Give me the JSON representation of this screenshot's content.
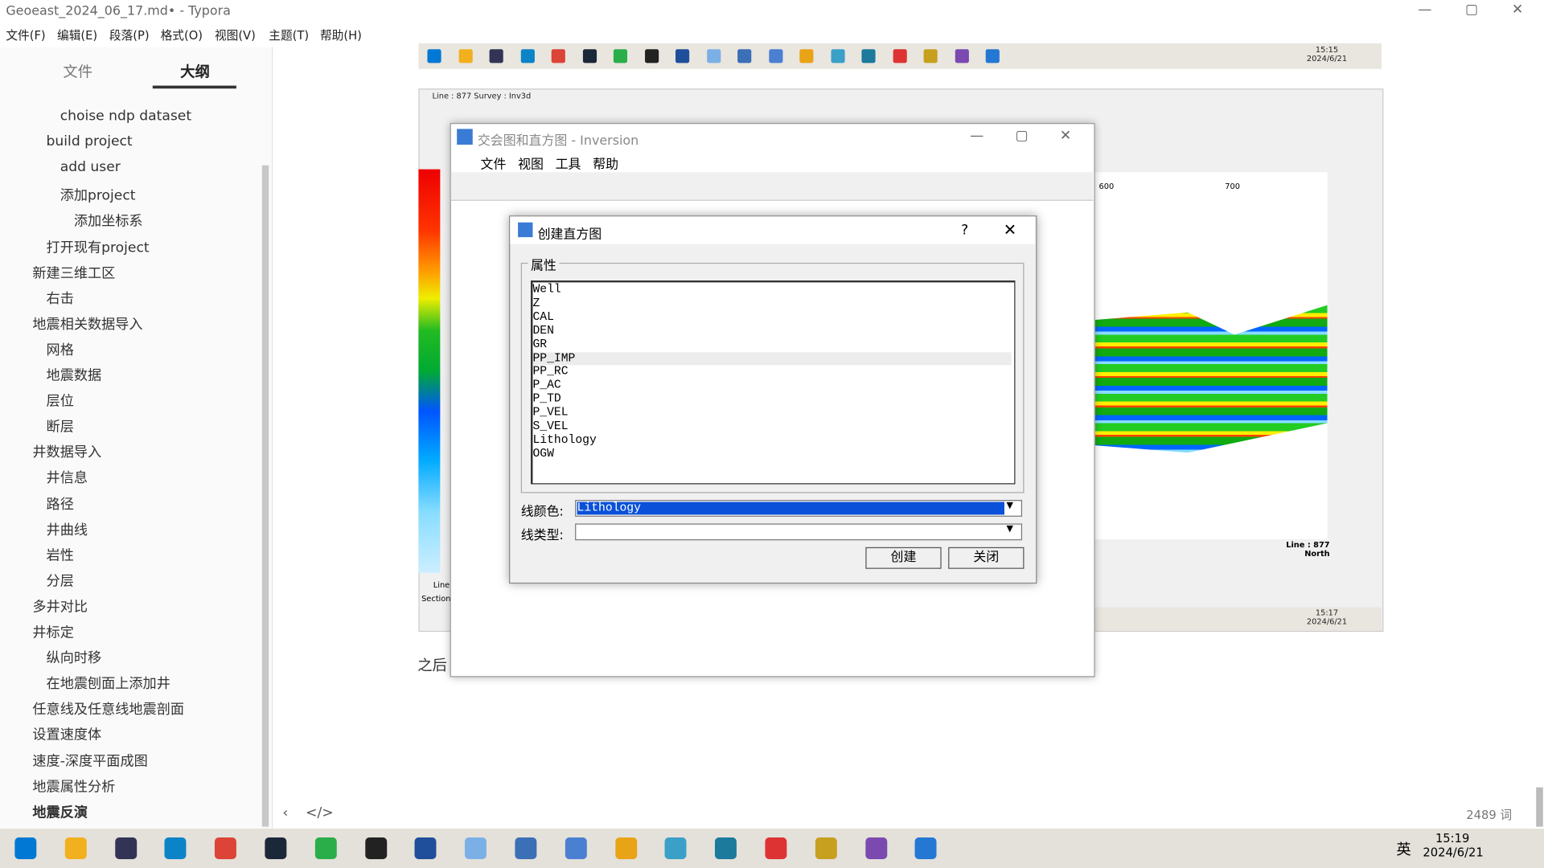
{
  "window": {
    "title": "Geoeast_2024_06_17.md• - Typora",
    "menu": [
      "文件(F)",
      "编辑(E)",
      "段落(P)",
      "格式(O)",
      "视图(V)",
      "主题(T)",
      "帮助(H)"
    ]
  },
  "sidebar": {
    "tabs": [
      "文件",
      "大纲"
    ],
    "outline": [
      {
        "text": "choise ndp dataset",
        "level": 3
      },
      {
        "text": "build project",
        "level": 2
      },
      {
        "text": "add user",
        "level": 3
      },
      {
        "text": "添加project",
        "level": 3
      },
      {
        "text": "添加坐标系",
        "level": 4
      },
      {
        "text": "打开现有project",
        "level": 2
      },
      {
        "text": "新建三维工区",
        "level": 1
      },
      {
        "text": "右击",
        "level": 2
      },
      {
        "text": "地震相关数据导入",
        "level": 1
      },
      {
        "text": "网格",
        "level": 2
      },
      {
        "text": "地震数据",
        "level": 2
      },
      {
        "text": "层位",
        "level": 2
      },
      {
        "text": "断层",
        "level": 2
      },
      {
        "text": "井数据导入",
        "level": 1
      },
      {
        "text": "井信息",
        "level": 2
      },
      {
        "text": "路径",
        "level": 2
      },
      {
        "text": "井曲线",
        "level": 2
      },
      {
        "text": "岩性",
        "level": 2
      },
      {
        "text": "分层",
        "level": 2
      },
      {
        "text": "多井对比",
        "level": 1
      },
      {
        "text": "井标定",
        "level": 1
      },
      {
        "text": "纵向时移",
        "level": 2
      },
      {
        "text": "在地震刨面上添加井",
        "level": 2
      },
      {
        "text": "任意线及任意线地震剖面",
        "level": 1
      },
      {
        "text": "设置速度体",
        "level": 1
      },
      {
        "text": "速度-深度平面成图",
        "level": 1
      },
      {
        "text": "地震属性分析",
        "level": 1
      },
      {
        "text": "地震反演",
        "level": 1
      }
    ]
  },
  "editor": {
    "text": "之后",
    "word_count": "2489 词"
  },
  "screenshot": {
    "window_title": "Line : 877  Survey : Inv3d",
    "axis_labels": [
      "600",
      "700"
    ],
    "line_label": "Line : 877",
    "direction": "North",
    "status": [
      "Line",
      "Section"
    ],
    "clock_top": {
      "time": "15:15",
      "date": "2024/6/21"
    },
    "clock_bottom": {
      "time": "15:17",
      "date": "2024/6/21"
    }
  },
  "inversion_window": {
    "title": "交会图和直方图 - Inversion",
    "menu": [
      "文件",
      "视图",
      "工具",
      "帮助"
    ]
  },
  "dialog": {
    "title": "创建直方图",
    "help": "?",
    "group": "属性",
    "attributes": [
      "Well",
      "Z",
      "CAL",
      "DEN",
      "GR",
      "PP_IMP",
      "PP_RC",
      "P_AC",
      "P_TD",
      "P_VEL",
      "S_VEL",
      "Lithology",
      "OGW"
    ],
    "highlighted_index": 5,
    "line_color_label": "线颜色:",
    "line_color_value": "Lithology",
    "line_type_label": "线类型:",
    "buttons": [
      "创建",
      "关闭"
    ]
  },
  "taskbar": {
    "ime": "英",
    "time": "15:19",
    "date": "2024/6/21"
  }
}
